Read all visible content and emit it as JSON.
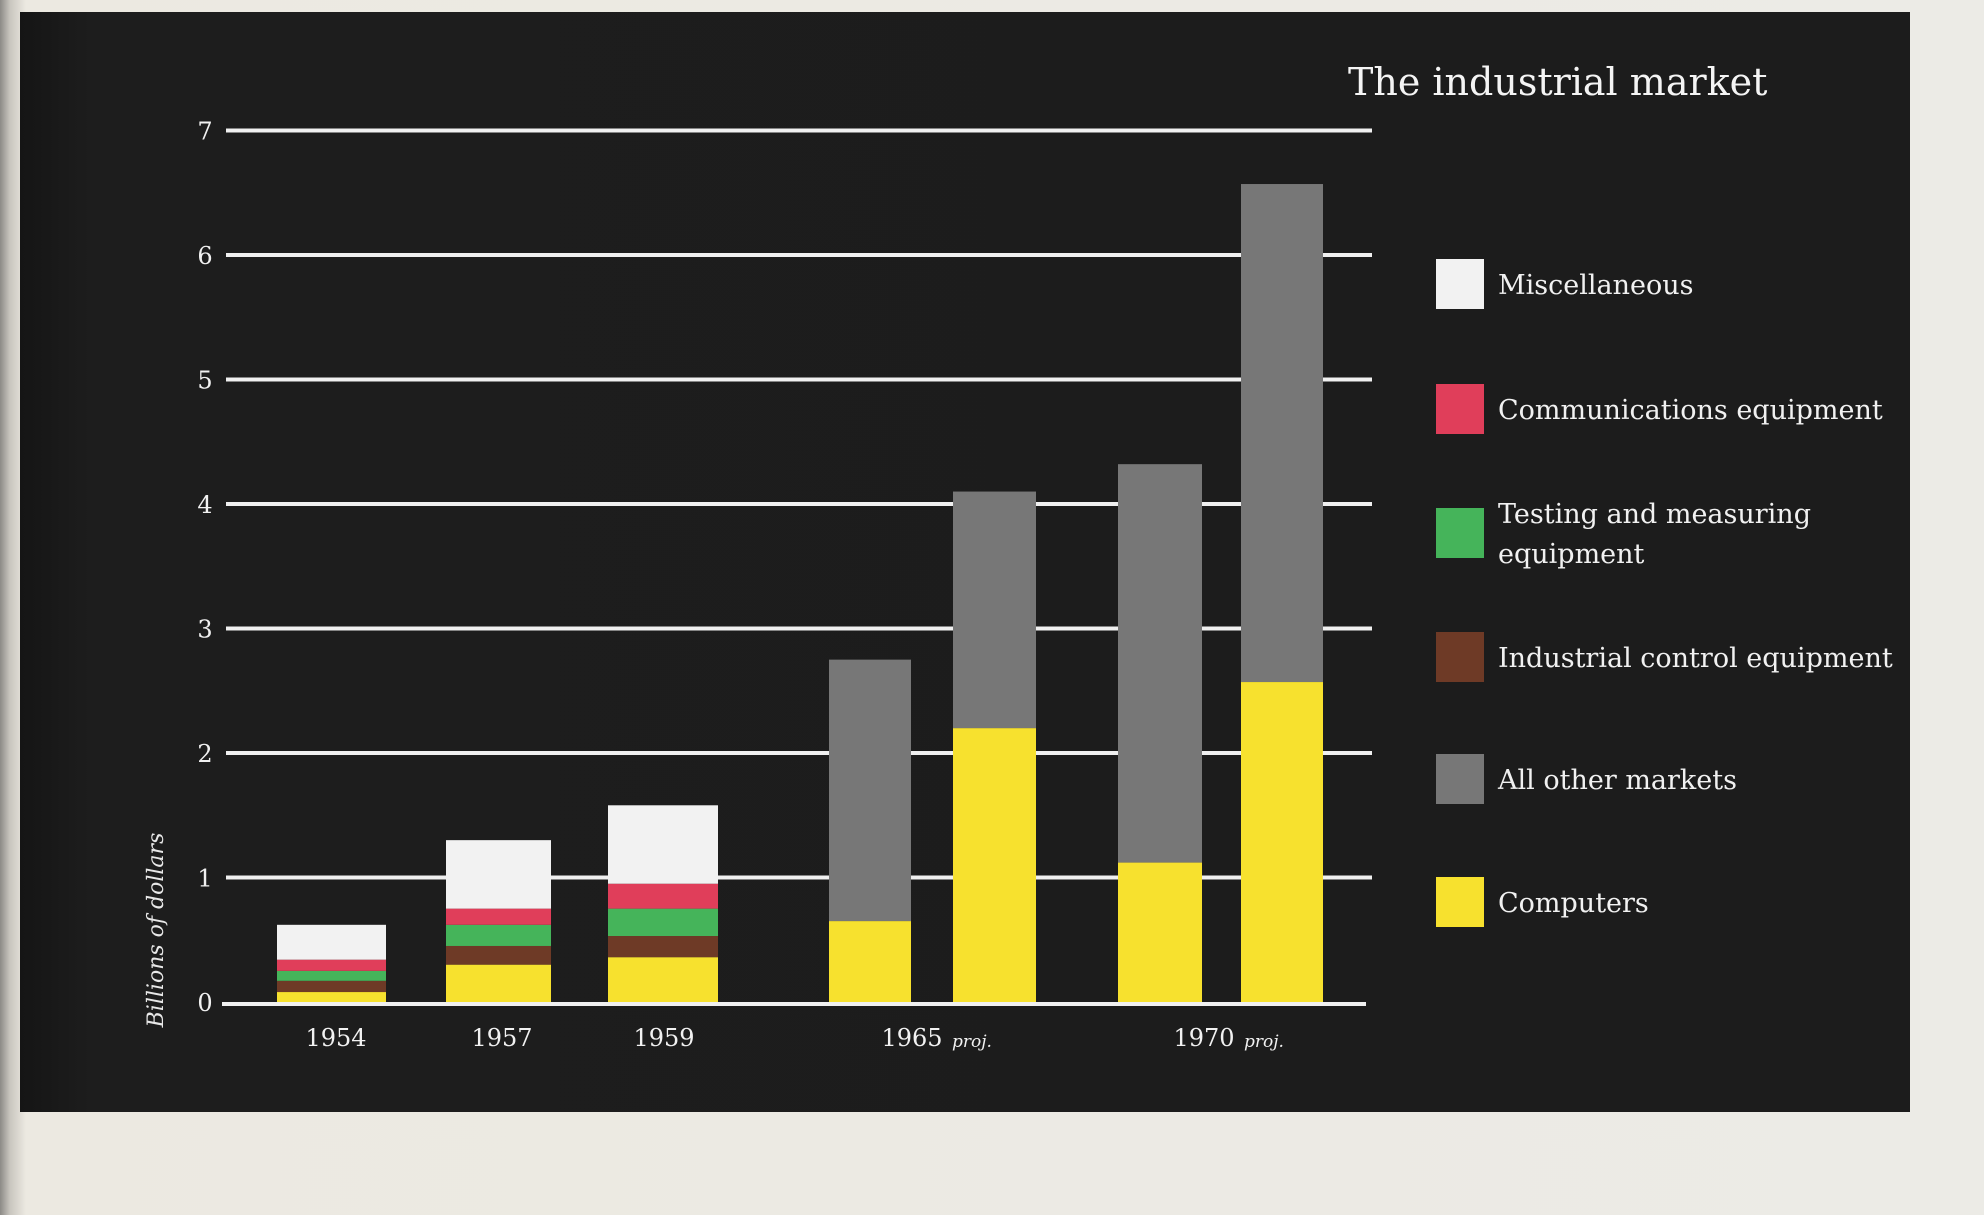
{
  "chart_data": {
    "type": "bar",
    "stacked": true,
    "title": "The industrial market",
    "ylabel": "Billions of dollars",
    "ylim": [
      0,
      7
    ],
    "yticks": [
      0,
      1,
      2,
      3,
      4,
      5,
      6,
      7
    ],
    "grid": true,
    "legend_position": "right",
    "groups": [
      {
        "label": "1954",
        "note": "",
        "bars": 1
      },
      {
        "label": "1957",
        "note": "",
        "bars": 1
      },
      {
        "label": "1959",
        "note": "",
        "bars": 1
      },
      {
        "label": "1965",
        "note": "proj.",
        "bars": 2
      },
      {
        "label": "1970",
        "note": "proj.",
        "bars": 2
      }
    ],
    "series": [
      {
        "name": "Computers",
        "color": "#f7e12e",
        "values": [
          0.08,
          0.3,
          0.36,
          0.65,
          2.2,
          1.12,
          2.57
        ]
      },
      {
        "name": "All other markets",
        "color": "#777777",
        "values": [
          0,
          0,
          0,
          2.1,
          1.9,
          3.2,
          4.0
        ]
      },
      {
        "name": "Industrial control equipment",
        "color": "#6e3a26",
        "values": [
          0.09,
          0.15,
          0.17,
          0,
          0,
          0,
          0
        ]
      },
      {
        "name": "Testing and measuring equipment",
        "color": "#45b45a",
        "values": [
          0.08,
          0.17,
          0.22,
          0,
          0,
          0,
          0
        ]
      },
      {
        "name": "Communications equipment",
        "color": "#e03e5a",
        "values": [
          0.09,
          0.13,
          0.2,
          0,
          0,
          0,
          0
        ]
      },
      {
        "name": "Miscellaneous",
        "color": "#f2f2f2",
        "values": [
          0.28,
          0.55,
          0.63,
          0,
          0,
          0,
          0
        ]
      }
    ],
    "legend_order": [
      "Miscellaneous",
      "Communications equipment",
      "Testing and measuring equipment",
      "Industrial control equipment",
      "All other markets",
      "Computers"
    ]
  },
  "colors": {
    "background": "#1c1c1c",
    "gridline": "#f0f0f0",
    "text": "#f1f1f1"
  }
}
